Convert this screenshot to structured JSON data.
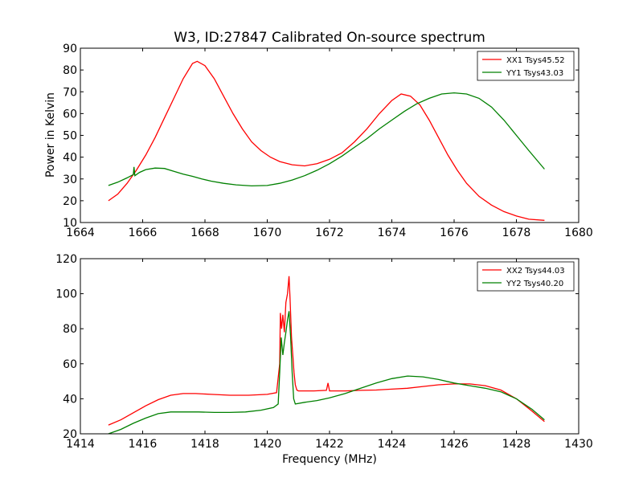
{
  "title": "W3, ID:27847 Calibrated On-source spectrum",
  "ylabel": "Power in Kelvin",
  "xlabel": "Frequency (MHz)",
  "colors": {
    "red": "#ff0000",
    "green": "#008000"
  },
  "chart_data": [
    {
      "type": "line",
      "xlim": [
        1664,
        1680
      ],
      "ylim": [
        10,
        90
      ],
      "xticks": [
        1664,
        1666,
        1668,
        1670,
        1672,
        1674,
        1676,
        1678,
        1680
      ],
      "yticks": [
        10,
        20,
        30,
        40,
        50,
        60,
        70,
        80,
        90
      ],
      "legend_position": "top-right",
      "series": [
        {
          "name": "XX1 Tsys45.52",
          "color": "#ff0000",
          "points": [
            [
              1664.9,
              20
            ],
            [
              1665.2,
              23
            ],
            [
              1665.5,
              28
            ],
            [
              1665.8,
              34
            ],
            [
              1666.1,
              41
            ],
            [
              1666.4,
              49
            ],
            [
              1666.7,
              58
            ],
            [
              1667.0,
              67
            ],
            [
              1667.3,
              76
            ],
            [
              1667.6,
              83
            ],
            [
              1667.75,
              84
            ],
            [
              1668.0,
              82
            ],
            [
              1668.3,
              76
            ],
            [
              1668.6,
              68
            ],
            [
              1668.9,
              60
            ],
            [
              1669.2,
              53
            ],
            [
              1669.5,
              47
            ],
            [
              1669.8,
              43
            ],
            [
              1670.1,
              40
            ],
            [
              1670.4,
              38
            ],
            [
              1670.8,
              36.5
            ],
            [
              1671.2,
              36
            ],
            [
              1671.6,
              37
            ],
            [
              1672.0,
              39
            ],
            [
              1672.4,
              42
            ],
            [
              1672.8,
              47
            ],
            [
              1673.2,
              53
            ],
            [
              1673.6,
              60
            ],
            [
              1674.0,
              66
            ],
            [
              1674.3,
              69
            ],
            [
              1674.6,
              68
            ],
            [
              1674.9,
              64
            ],
            [
              1675.2,
              57
            ],
            [
              1675.5,
              49
            ],
            [
              1675.8,
              41
            ],
            [
              1676.1,
              34
            ],
            [
              1676.4,
              28
            ],
            [
              1676.8,
              22
            ],
            [
              1677.2,
              18
            ],
            [
              1677.6,
              15
            ],
            [
              1678.0,
              13
            ],
            [
              1678.4,
              11.5
            ],
            [
              1678.9,
              11
            ]
          ]
        },
        {
          "name": "YY1 Tsys43.03",
          "color": "#008000",
          "points": [
            [
              1664.9,
              27
            ],
            [
              1665.2,
              28.5
            ],
            [
              1665.5,
              30.5
            ],
            [
              1665.7,
              32
            ],
            [
              1665.72,
              35.5
            ],
            [
              1665.75,
              31.5
            ],
            [
              1665.9,
              33
            ],
            [
              1666.1,
              34.3
            ],
            [
              1666.4,
              35
            ],
            [
              1666.7,
              34.8
            ],
            [
              1667.0,
              33.5
            ],
            [
              1667.3,
              32.2
            ],
            [
              1667.6,
              31.2
            ],
            [
              1667.9,
              30
            ],
            [
              1668.2,
              29
            ],
            [
              1668.6,
              28
            ],
            [
              1669.0,
              27.3
            ],
            [
              1669.5,
              26.8
            ],
            [
              1670.0,
              27
            ],
            [
              1670.4,
              28
            ],
            [
              1670.8,
              29.5
            ],
            [
              1671.2,
              31.5
            ],
            [
              1671.6,
              34
            ],
            [
              1672.0,
              37
            ],
            [
              1672.4,
              40.5
            ],
            [
              1672.8,
              44.5
            ],
            [
              1673.2,
              48.5
            ],
            [
              1673.6,
              53
            ],
            [
              1674.0,
              57
            ],
            [
              1674.4,
              61
            ],
            [
              1674.8,
              64.5
            ],
            [
              1675.2,
              67
            ],
            [
              1675.6,
              69
            ],
            [
              1676.0,
              69.5
            ],
            [
              1676.4,
              69
            ],
            [
              1676.8,
              67
            ],
            [
              1677.2,
              63
            ],
            [
              1677.6,
              57
            ],
            [
              1678.0,
              50
            ],
            [
              1678.4,
              43
            ],
            [
              1678.9,
              34.5
            ]
          ]
        }
      ]
    },
    {
      "type": "line",
      "xlim": [
        1414,
        1430
      ],
      "ylim": [
        20,
        120
      ],
      "xticks": [
        1414,
        1416,
        1418,
        1420,
        1422,
        1424,
        1426,
        1428,
        1430
      ],
      "yticks": [
        20,
        40,
        60,
        80,
        100,
        120
      ],
      "legend_position": "top-right",
      "series": [
        {
          "name": "XX2 Tsys44.03",
          "color": "#ff0000",
          "points": [
            [
              1414.9,
              25
            ],
            [
              1415.3,
              28
            ],
            [
              1415.7,
              32
            ],
            [
              1416.1,
              36
            ],
            [
              1416.5,
              39.5
            ],
            [
              1416.9,
              42
            ],
            [
              1417.3,
              43
            ],
            [
              1417.7,
              43
            ],
            [
              1418.2,
              42.5
            ],
            [
              1418.8,
              42
            ],
            [
              1419.4,
              42
            ],
            [
              1420.0,
              42.5
            ],
            [
              1420.3,
              43.5
            ],
            [
              1420.4,
              60
            ],
            [
              1420.42,
              89
            ],
            [
              1420.46,
              80
            ],
            [
              1420.5,
              88
            ],
            [
              1420.55,
              78
            ],
            [
              1420.6,
              95
            ],
            [
              1420.65,
              100
            ],
            [
              1420.7,
              110
            ],
            [
              1420.73,
              98
            ],
            [
              1420.78,
              75
            ],
            [
              1420.82,
              65
            ],
            [
              1420.86,
              55
            ],
            [
              1420.9,
              48
            ],
            [
              1420.95,
              45
            ],
            [
              1421.0,
              44.5
            ],
            [
              1421.5,
              44.5
            ],
            [
              1421.9,
              44.8
            ],
            [
              1421.95,
              49
            ],
            [
              1422.0,
              44.5
            ],
            [
              1422.5,
              44.5
            ],
            [
              1423.0,
              44.8
            ],
            [
              1423.5,
              45
            ],
            [
              1424.0,
              45.5
            ],
            [
              1424.5,
              46
            ],
            [
              1425.0,
              47
            ],
            [
              1425.5,
              48
            ],
            [
              1426.0,
              48.5
            ],
            [
              1426.5,
              48.5
            ],
            [
              1427.0,
              47.5
            ],
            [
              1427.5,
              45
            ],
            [
              1428.0,
              40
            ],
            [
              1428.5,
              33
            ],
            [
              1428.9,
              27
            ]
          ]
        },
        {
          "name": "YY2 Tsys40.20",
          "color": "#008000",
          "points": [
            [
              1414.9,
              20
            ],
            [
              1415.3,
              22.5
            ],
            [
              1415.7,
              26
            ],
            [
              1416.1,
              29
            ],
            [
              1416.5,
              31.5
            ],
            [
              1416.9,
              32.5
            ],
            [
              1417.3,
              32.5
            ],
            [
              1417.8,
              32.5
            ],
            [
              1418.3,
              32.2
            ],
            [
              1418.8,
              32.2
            ],
            [
              1419.3,
              32.5
            ],
            [
              1419.8,
              33.5
            ],
            [
              1420.2,
              35
            ],
            [
              1420.35,
              37
            ],
            [
              1420.4,
              55
            ],
            [
              1420.45,
              75
            ],
            [
              1420.5,
              65
            ],
            [
              1420.55,
              72
            ],
            [
              1420.6,
              78
            ],
            [
              1420.65,
              85
            ],
            [
              1420.7,
              90
            ],
            [
              1420.75,
              75
            ],
            [
              1420.8,
              55
            ],
            [
              1420.85,
              40
            ],
            [
              1420.9,
              37
            ],
            [
              1421.2,
              38
            ],
            [
              1421.6,
              39
            ],
            [
              1422.0,
              40.5
            ],
            [
              1422.5,
              43
            ],
            [
              1423.0,
              46
            ],
            [
              1423.5,
              49
            ],
            [
              1424.0,
              51.5
            ],
            [
              1424.5,
              53
            ],
            [
              1425.0,
              52.5
            ],
            [
              1425.5,
              51
            ],
            [
              1426.0,
              49
            ],
            [
              1426.5,
              47.5
            ],
            [
              1427.0,
              46
            ],
            [
              1427.5,
              44
            ],
            [
              1428.0,
              40
            ],
            [
              1428.5,
              34
            ],
            [
              1428.9,
              28
            ]
          ]
        }
      ]
    }
  ]
}
